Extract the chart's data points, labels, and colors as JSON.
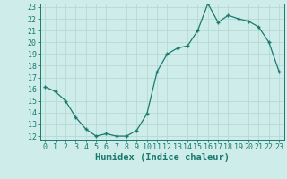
{
  "x": [
    0,
    1,
    2,
    3,
    4,
    5,
    6,
    7,
    8,
    9,
    10,
    11,
    12,
    13,
    14,
    15,
    16,
    17,
    18,
    19,
    20,
    21,
    22,
    23
  ],
  "y": [
    16.2,
    15.8,
    15.0,
    13.6,
    12.6,
    12.0,
    12.2,
    12.0,
    12.0,
    12.5,
    13.9,
    17.5,
    19.0,
    19.5,
    19.7,
    21.0,
    23.3,
    21.7,
    22.3,
    22.0,
    21.8,
    21.3,
    20.0,
    17.5
  ],
  "xlabel": "Humidex (Indice chaleur)",
  "ylim": [
    12,
    23
  ],
  "xlim": [
    -0.5,
    23.5
  ],
  "yticks": [
    12,
    13,
    14,
    15,
    16,
    17,
    18,
    19,
    20,
    21,
    22,
    23
  ],
  "xticks": [
    0,
    1,
    2,
    3,
    4,
    5,
    6,
    7,
    8,
    9,
    10,
    11,
    12,
    13,
    14,
    15,
    16,
    17,
    18,
    19,
    20,
    21,
    22,
    23
  ],
  "line_color": "#1a7a6e",
  "marker_color": "#1a7a6e",
  "bg_color": "#ceecea",
  "grid_color": "#b8d8d4",
  "axis_color": "#1a7a6e",
  "text_color": "#1a7a6e",
  "font_size": 6.0,
  "xlabel_fontsize": 7.5
}
